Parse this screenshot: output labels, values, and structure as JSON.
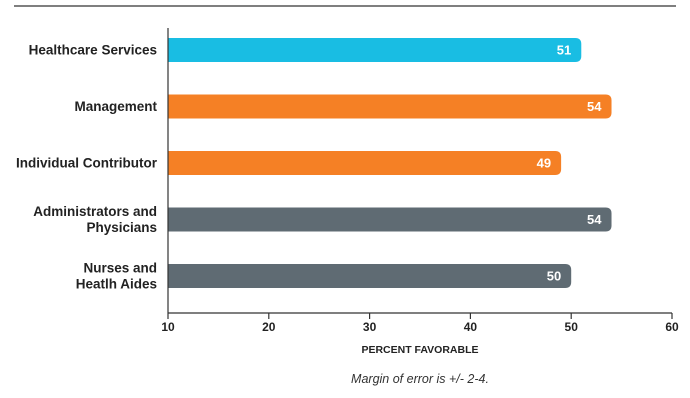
{
  "chart_data": {
    "type": "bar",
    "orientation": "horizontal",
    "categories": [
      [
        "Healthcare Services"
      ],
      [
        "Management"
      ],
      [
        "Individual Contributor"
      ],
      [
        "Administrators and",
        "Physicians"
      ],
      [
        "Nurses and",
        "Heatlh Aides"
      ]
    ],
    "values": [
      51,
      54,
      49,
      54,
      50
    ],
    "value_labels": [
      "51",
      "54",
      "49",
      "54",
      "50"
    ],
    "bar_colors": [
      "#19bde3",
      "#f58025",
      "#f58025",
      "#5f6b73",
      "#5f6b73"
    ],
    "xlim": [
      10,
      60
    ],
    "xticks": [
      10,
      20,
      30,
      40,
      50,
      60
    ],
    "xlabel": "PERCENT FAVORABLE",
    "grid": false
  },
  "footnote": "Margin of error is +/- 2-4.",
  "colors": {
    "axis": "#333333",
    "top_rule": "#555555",
    "text": "#222222"
  }
}
